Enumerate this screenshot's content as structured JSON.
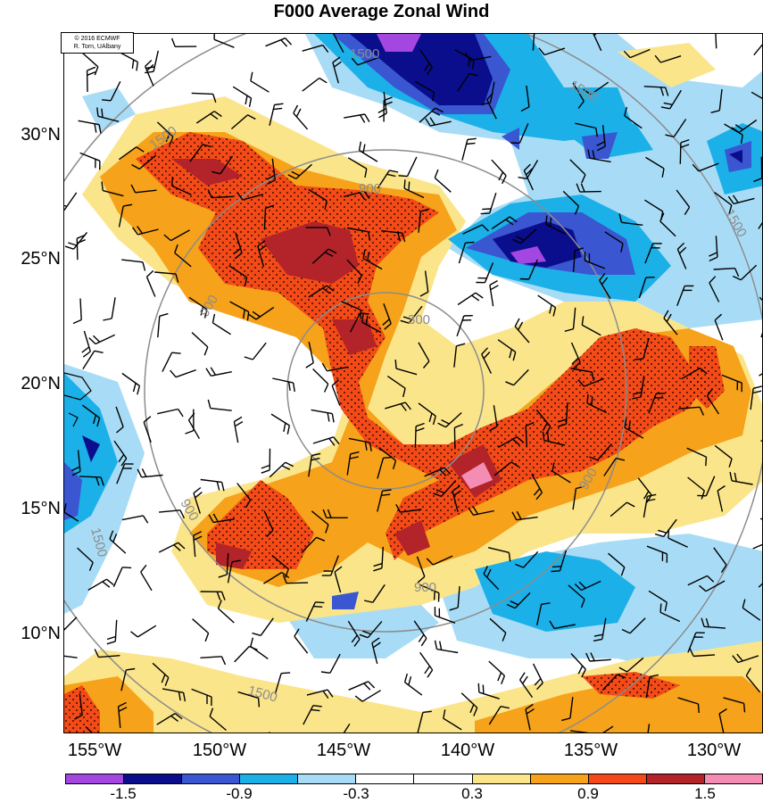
{
  "title": "F000 Average Zonal Wind",
  "credit": {
    "line1": "© 2016 ECMWF",
    "line2": "R. Torn, UAlbany"
  },
  "lat_labels": [
    "30°N",
    "25°N",
    "20°N",
    "15°N",
    "10°N"
  ],
  "lon_labels": [
    "155°W",
    "150°W",
    "145°W",
    "140°W",
    "135°W",
    "130°W"
  ],
  "contour_labels": [
    "300",
    "900",
    "900",
    "900",
    "900",
    "900",
    "1500",
    "1500",
    "1500",
    "1500",
    "1500",
    "1500"
  ],
  "colorbar": {
    "colors": [
      "#a347e0",
      "#0b0e8c",
      "#3a56d0",
      "#1bb0e8",
      "#a8dcf6",
      "#ffffff",
      "#ffffff",
      "#fbe58a",
      "#f6a21a",
      "#f44a17",
      "#b2242a",
      "#f58cb4"
    ],
    "labels": [
      "-1.5",
      "-0.9",
      "-0.3",
      "0.3",
      "0.9",
      "1.5"
    ]
  },
  "map_colors": {
    "light_blue": "#a8dcf6",
    "blue": "#1bb0e8",
    "mid_blue": "#3a56d0",
    "dark_blue": "#0b0e8c",
    "purple": "#a347e0",
    "yellow": "#fbe58a",
    "orange": "#f6a21a",
    "red": "#f44a17",
    "dark_red": "#b2242a",
    "pink": "#f58cb4",
    "range_ring": "#8c8c8c"
  }
}
